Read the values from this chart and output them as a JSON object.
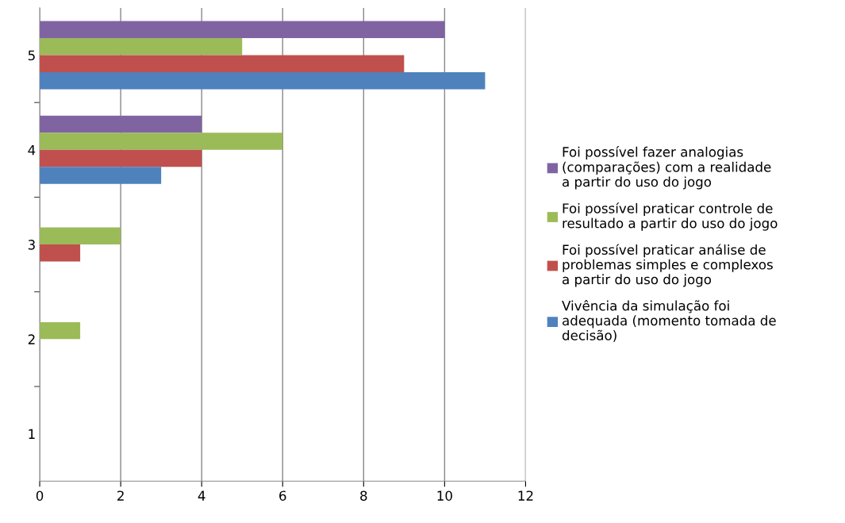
{
  "chart_data": {
    "type": "bar",
    "orientation": "horizontal",
    "categories": [
      "5",
      "4",
      "3",
      "2",
      "1"
    ],
    "series": [
      {
        "name": "Foi possível fazer analogias\n(comparações) com a realidade\na partir do uso do jogo",
        "color": "#8064a2",
        "values": [
          10,
          4,
          0,
          0,
          0
        ]
      },
      {
        "name": "Foi possível praticar controle de\nresultado a partir do uso do jogo",
        "color": "#9bbb59",
        "values": [
          5,
          6,
          2,
          1,
          0
        ]
      },
      {
        "name": "Foi possível praticar análise de\nproblemas simples e complexos\na partir do uso do jogo",
        "color": "#c0504d",
        "values": [
          9,
          4,
          1,
          0,
          0
        ]
      },
      {
        "name": "Vivência da simulação foi\nadequada (momento tomada de\ndecisão)",
        "color": "#4f81bd",
        "values": [
          11,
          3,
          0,
          0,
          0
        ]
      }
    ],
    "xlim": [
      0,
      12
    ],
    "xticks": [
      0,
      2,
      4,
      6,
      8,
      10,
      12
    ],
    "grid": "x",
    "legend": "right"
  }
}
